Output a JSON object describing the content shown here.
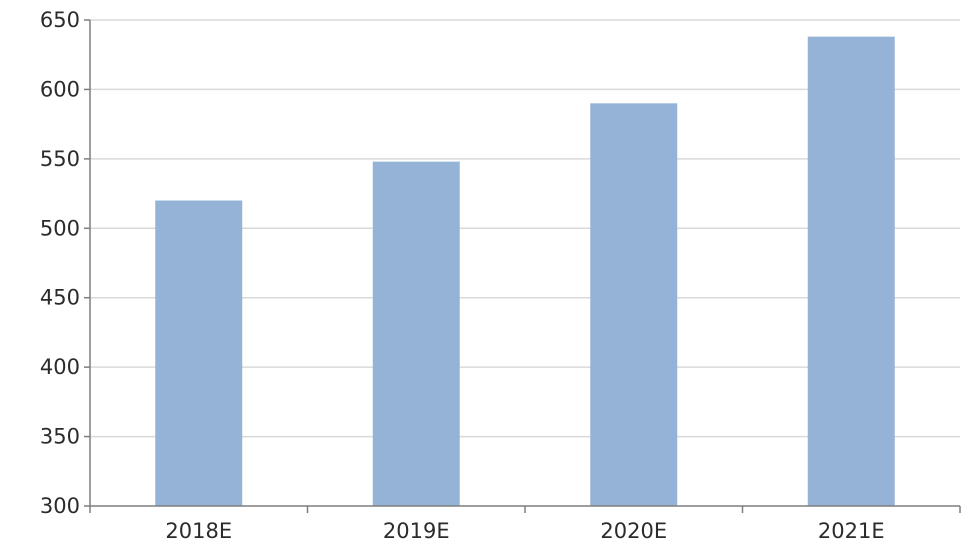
{
  "chart_data": {
    "type": "bar",
    "categories": [
      "2018E",
      "2019E",
      "2020E",
      "2021E"
    ],
    "values": [
      520,
      548,
      590,
      638
    ],
    "title": "",
    "xlabel": "",
    "ylabel": "",
    "ylim": [
      300,
      650
    ],
    "yticks": [
      300,
      350,
      400,
      450,
      500,
      550,
      600,
      650
    ],
    "grid": true,
    "legend": "none",
    "bar_color": "#95b3d7"
  }
}
